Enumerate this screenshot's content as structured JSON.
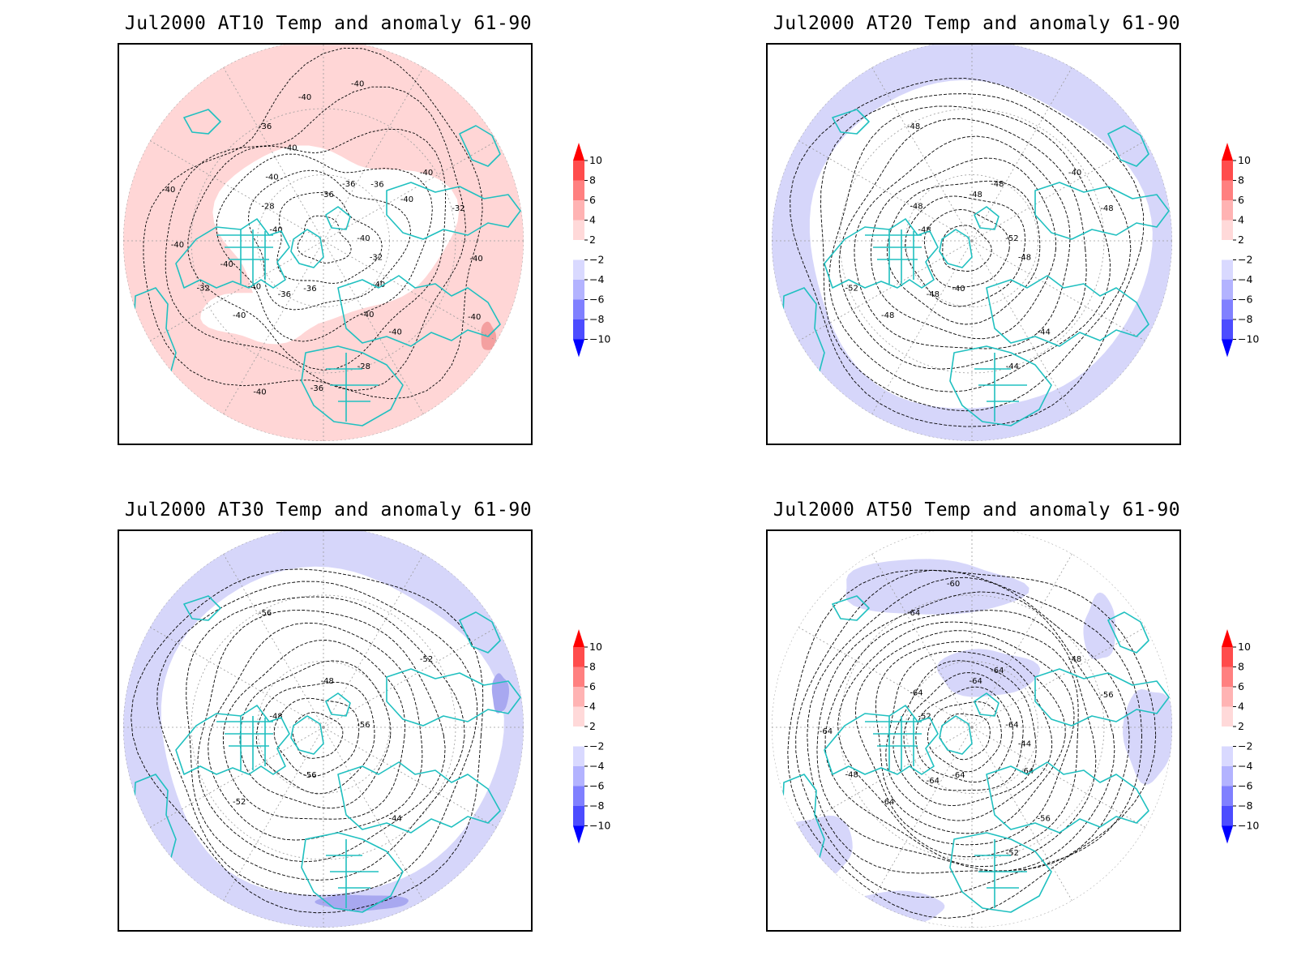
{
  "panels": [
    {
      "id": "at10",
      "title": "Jul2000 AT10 Temp and anomaly 61-90",
      "anomaly_fill": "warm",
      "contour_labels": [
        "-40",
        "-40",
        "-36",
        "-40",
        "-40",
        "-40",
        "-36",
        "-36",
        "-32",
        "-32",
        "-36",
        "-28",
        "-28",
        "-32",
        "-36",
        "-40",
        "-40",
        "-40",
        "-36",
        "-36",
        "-40",
        "-40",
        "-40",
        "-40",
        "-40",
        "-40",
        "-40",
        "-40",
        "-40",
        "-40",
        "-40"
      ]
    },
    {
      "id": "at20",
      "title": "Jul2000 AT20 Temp and anomaly 61-90",
      "anomaly_fill": "cool-rim",
      "contour_labels": [
        "-52",
        "-48",
        "-48",
        "-44",
        "-48",
        "-40",
        "-40",
        "-48",
        "-48",
        "-52",
        "-48",
        "-44",
        "-48",
        "-48",
        "-48"
      ]
    },
    {
      "id": "at30",
      "title": "Jul2000 AT30 Temp and anomaly 61-90",
      "anomaly_fill": "cool-rim",
      "contour_labels": [
        "-56",
        "-52",
        "-48",
        "-44",
        "-48",
        "-52",
        "-56",
        "-56"
      ]
    },
    {
      "id": "at50",
      "title": "Jul2000 AT50 Temp and anomaly 61-90",
      "anomaly_fill": "cool-patches",
      "contour_labels": [
        "-64",
        "-64",
        "-64",
        "-56",
        "-52",
        "-48",
        "-64",
        "-64",
        "-44",
        "-48",
        "-64",
        "-52",
        "-64",
        "-56",
        "-64",
        "-60",
        "-64",
        "-64"
      ]
    }
  ],
  "colorbar": {
    "ticks": [
      "10",
      "8",
      "6",
      "4",
      "2",
      "−2",
      "−4",
      "−6",
      "−8",
      "−10"
    ],
    "colors": [
      "#ff0000",
      "#ff4c4c",
      "#ff8080",
      "#ffb3b3",
      "#ffd9d9",
      "#ffffff",
      "#d9d9ff",
      "#b3b3ff",
      "#8080ff",
      "#4c4cff",
      "#0000ff"
    ]
  },
  "colors": {
    "coastline": "#20c0c0",
    "warm_anomaly": "#ffd6d6",
    "warm_anomaly_strong": "#f4a0a0",
    "cool_anomaly": "#d6d6fa",
    "cool_anomaly_strong": "#a8a8f0",
    "contour": "#000000",
    "graticule": "#9a9a9a"
  }
}
